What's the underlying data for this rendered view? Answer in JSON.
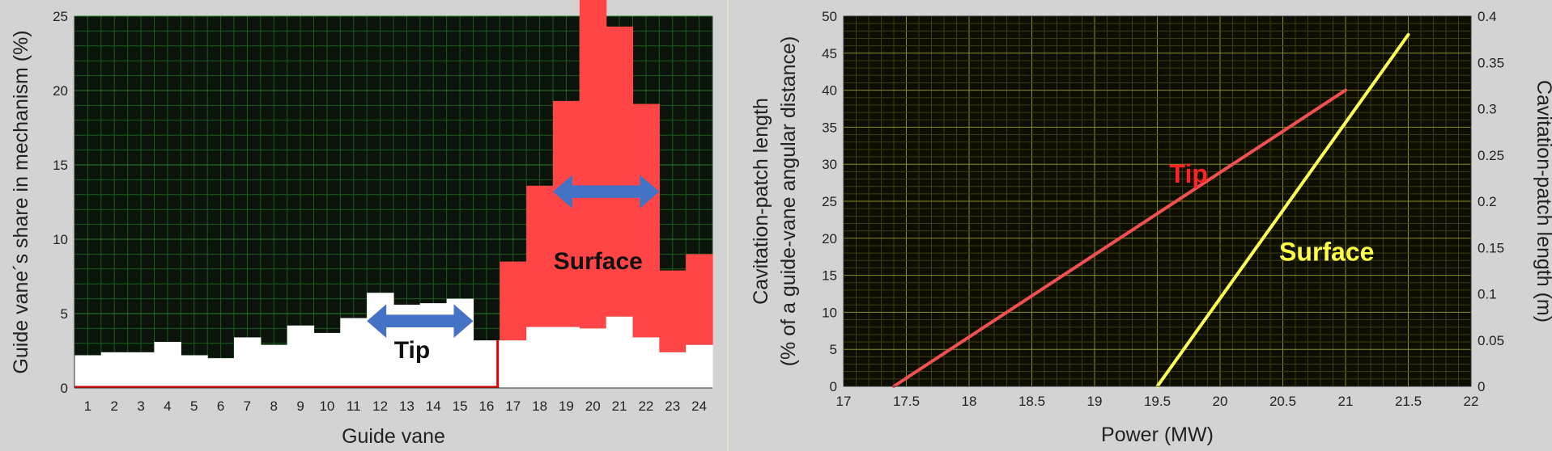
{
  "chart_data": [
    {
      "type": "bar",
      "xlabel": "Guide vane",
      "ylabel": "Guide vane´s share in mechanism (%)",
      "ylim": [
        0,
        25
      ],
      "yticks": [
        0,
        5,
        10,
        15,
        20,
        25
      ],
      "grid": true,
      "background": "#0a140a",
      "categories": [
        "1",
        "2",
        "3",
        "4",
        "5",
        "6",
        "7",
        "8",
        "9",
        "10",
        "11",
        "12",
        "13",
        "14",
        "15",
        "16",
        "17",
        "18",
        "19",
        "20",
        "21",
        "22",
        "23",
        "24"
      ],
      "series": [
        {
          "name": "Tip",
          "color": "#ffffff",
          "values": [
            2.2,
            2.4,
            2.4,
            3.1,
            2.2,
            2.0,
            3.4,
            2.9,
            4.2,
            3.7,
            4.7,
            6.4,
            5.6,
            5.7,
            6.0,
            3.2,
            3.2,
            4.1,
            4.1,
            4.0,
            4.8,
            3.4,
            2.4,
            2.9
          ]
        },
        {
          "name": "Surface",
          "color": "#ff4545",
          "values": [
            0,
            0,
            0,
            0,
            0,
            0,
            0,
            0,
            0,
            0,
            0,
            0,
            0,
            0,
            0,
            0,
            5.3,
            9.5,
            15.2,
            23.5,
            19.5,
            15.7,
            5.5,
            6.1
          ]
        }
      ],
      "annotations": [
        {
          "text": "Tip",
          "color": "#111111",
          "x": 13.2,
          "y": 2.0
        },
        {
          "text": "Surface",
          "color": "#111111",
          "x": 20.2,
          "y": 8.0
        }
      ],
      "arrows": [
        {
          "from": 11.5,
          "to": 15.5,
          "y": 4.5,
          "color": "#4472c4"
        },
        {
          "from": 18.5,
          "to": 22.5,
          "y": 13.2,
          "color": "#4472c4"
        }
      ]
    },
    {
      "type": "line",
      "xlabel": "Power (MW)",
      "ylabel": [
        "Cavitation-patch length",
        "(% of a guide-vane angular distance)"
      ],
      "ylabel_right": "Cavitation-patch length (m)",
      "xlim": [
        17,
        22
      ],
      "xticks": [
        "17",
        "17.5",
        "18",
        "18.5",
        "19",
        "19.5",
        "20",
        "20.5",
        "21",
        "21.5",
        "22"
      ],
      "ylim": [
        0,
        50
      ],
      "yticks": [
        "0",
        "5",
        "10",
        "15",
        "20",
        "25",
        "30",
        "35",
        "40",
        "45",
        "50"
      ],
      "ylim_right": [
        0,
        0.4
      ],
      "yticks_right": [
        "0",
        "0.05",
        "0.1",
        "0.15",
        "0.2",
        "0.25",
        "0.3",
        "0.35",
        "0.4"
      ],
      "grid": true,
      "background": "#0e0e00",
      "series": [
        {
          "name": "Tip",
          "color": "#f05050",
          "x": [
            17.4,
            21.0
          ],
          "y": [
            0,
            40
          ]
        },
        {
          "name": "Surface",
          "color": "#ffff55",
          "x": [
            19.5,
            21.5
          ],
          "y": [
            0,
            47.5
          ]
        }
      ],
      "annotations": [
        {
          "text": "Tip",
          "color": "#ff2222",
          "x": 19.75,
          "y": 27.5
        },
        {
          "text": "Surface",
          "color": "#ffff44",
          "x": 20.85,
          "y": 17.0
        }
      ]
    }
  ]
}
